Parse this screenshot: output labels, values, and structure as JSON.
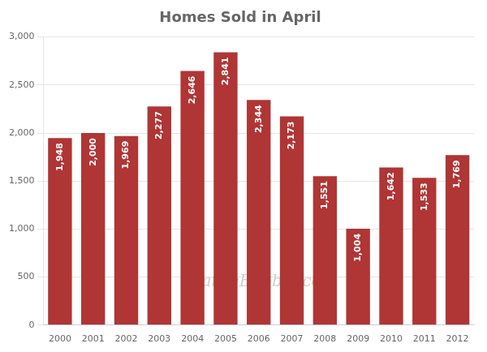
{
  "chart_data": {
    "type": "bar",
    "title": "Homes Sold in April",
    "categories": [
      "2000",
      "2001",
      "2002",
      "2003",
      "2004",
      "2005",
      "2006",
      "2007",
      "2008",
      "2009",
      "2010",
      "2011",
      "2012"
    ],
    "values": [
      1948,
      2000,
      1969,
      2277,
      2646,
      2841,
      2344,
      2173,
      1551,
      1004,
      1642,
      1533,
      1769
    ],
    "value_labels": [
      "1,948",
      "2,000",
      "1,969",
      "2,277",
      "2,646",
      "2,841",
      "2,344",
      "2,173",
      "1,551",
      "1,004",
      "1,642",
      "1,533",
      "1,769"
    ],
    "data_labels": true,
    "color": "#b03535",
    "ylim": [
      0,
      3000
    ],
    "yticks": [
      0,
      500,
      {
        "value": 1000,
        "label": "1,000"
      },
      {
        "value": 1500,
        "label": "1,500"
      },
      {
        "value": 2000,
        "label": "2,000"
      },
      {
        "value": 2500,
        "label": "2,500"
      },
      {
        "value": 3000,
        "label": "3,000"
      }
    ],
    "grid": true,
    "annotations": [
      {
        "text": "SeattleBubble.com",
        "color": "#d0d0d0"
      }
    ]
  }
}
